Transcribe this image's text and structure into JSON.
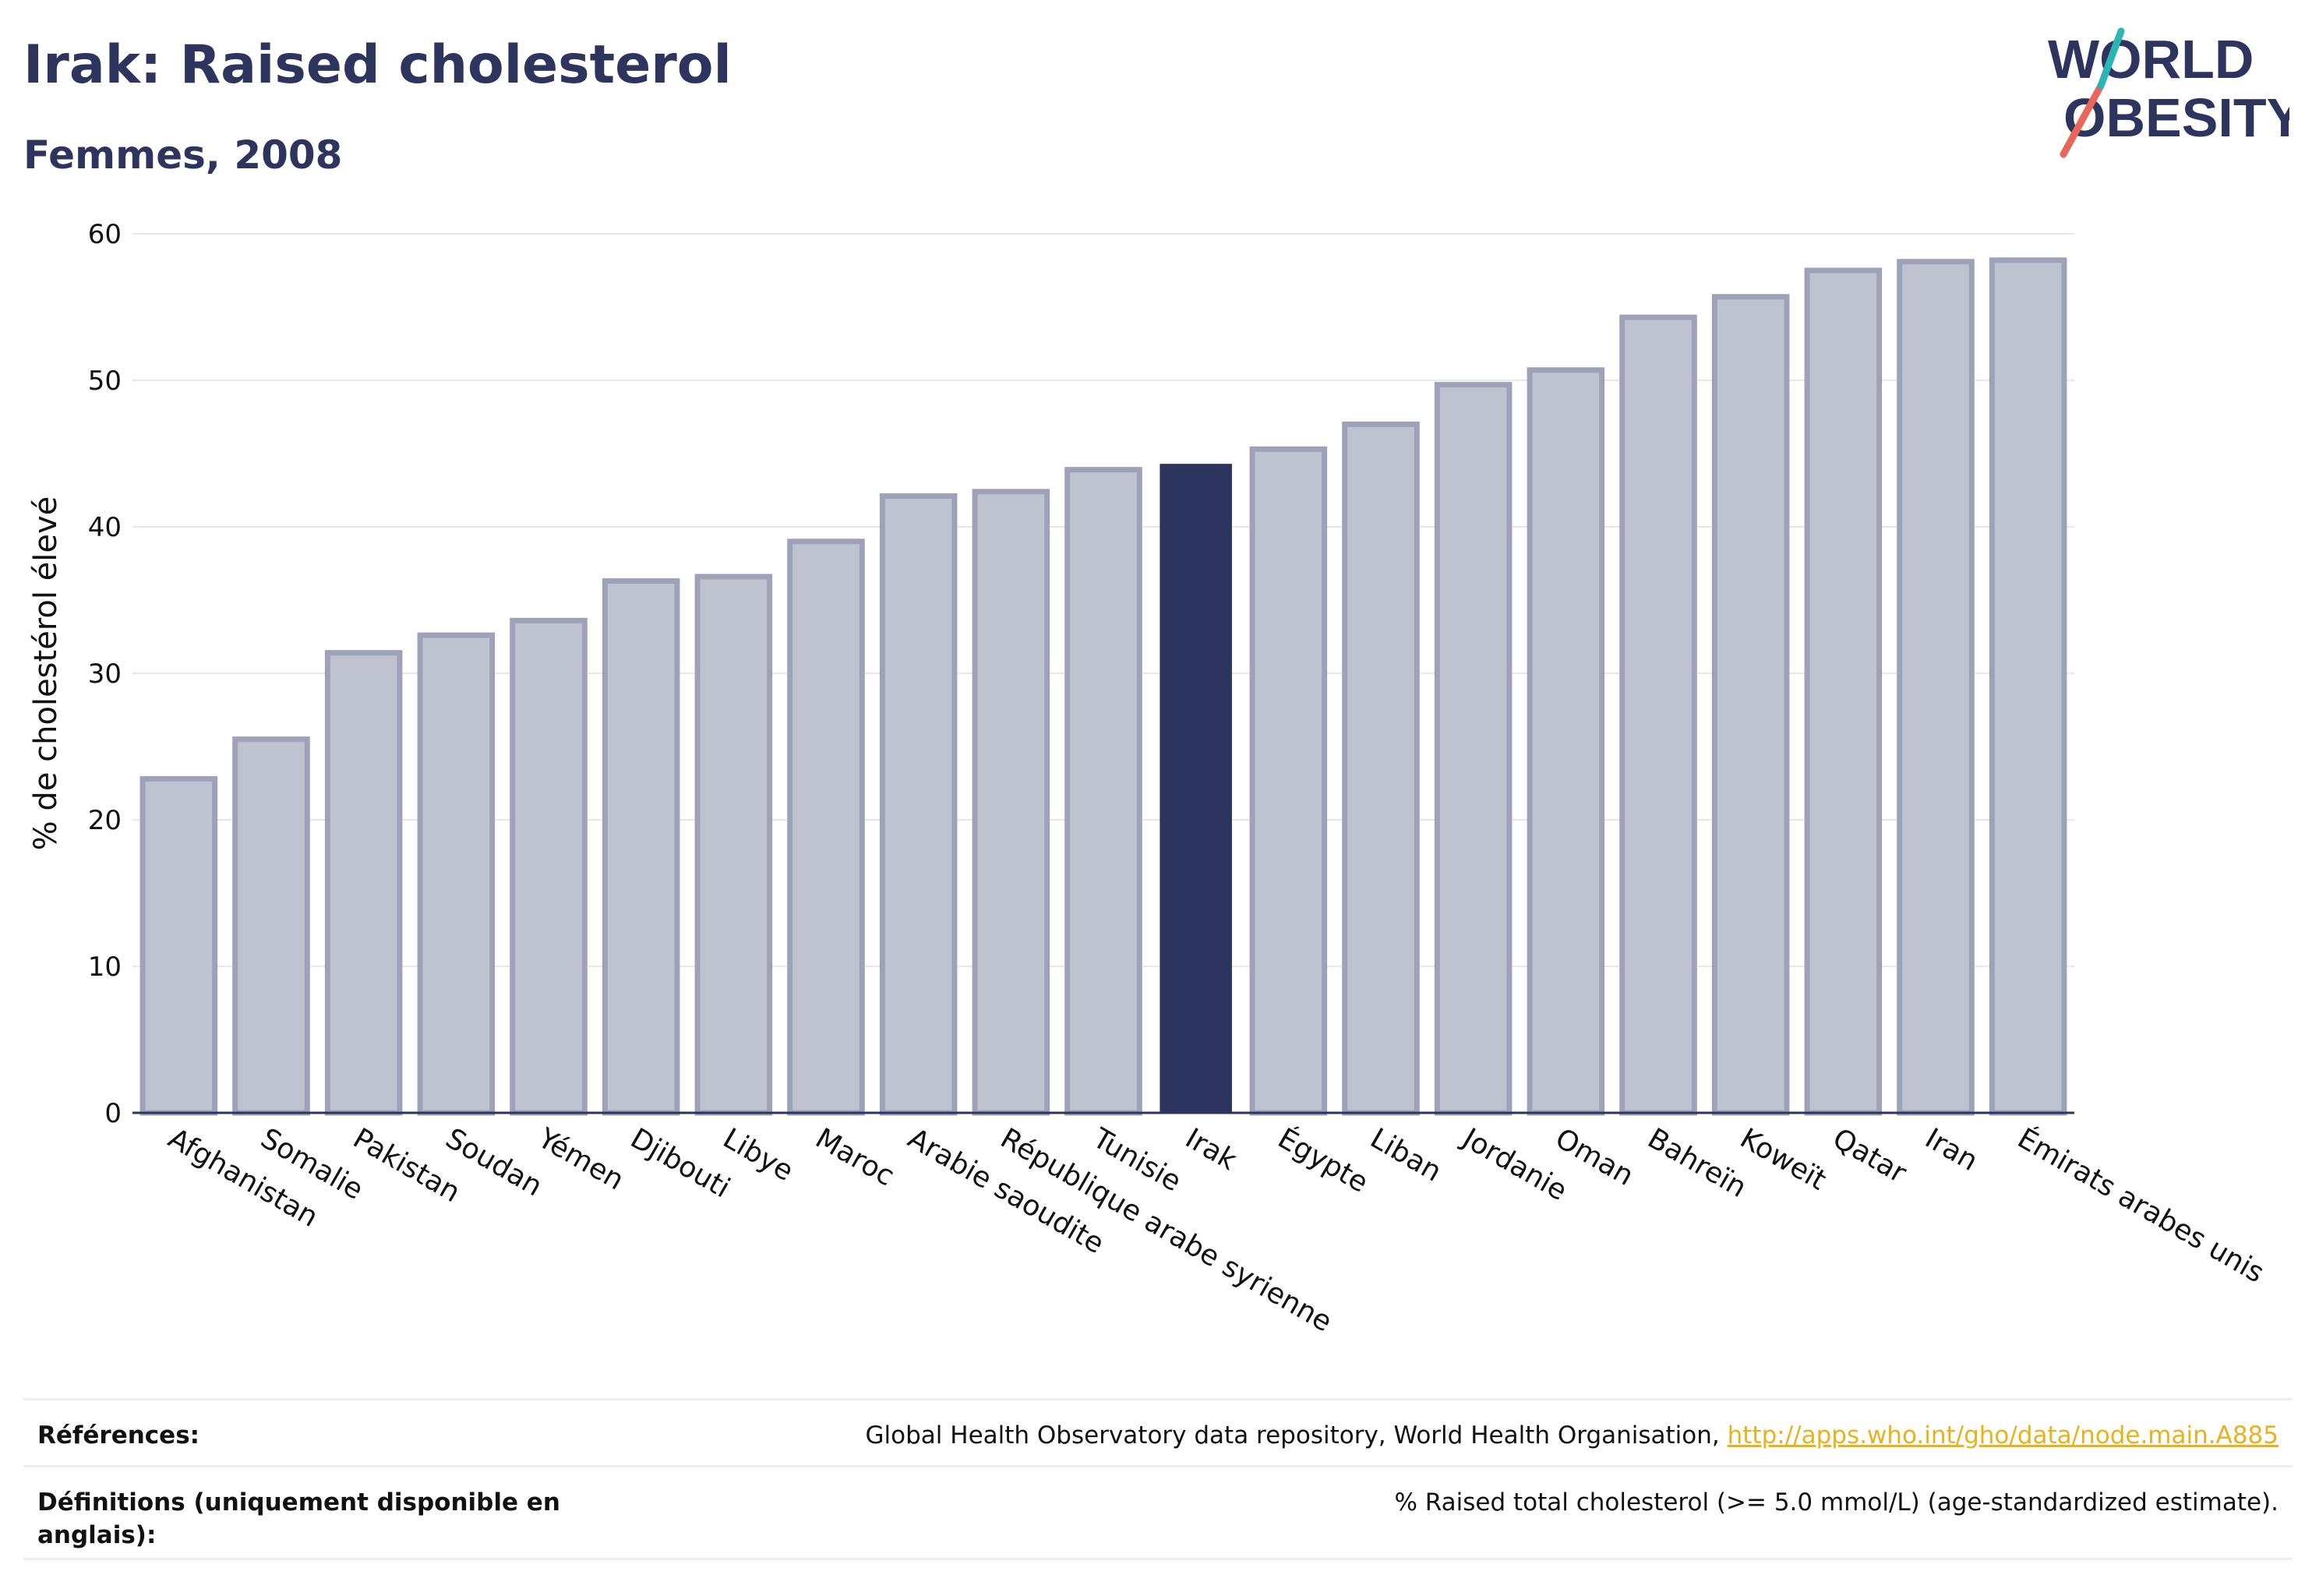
{
  "header": {
    "title": "Irak: Raised cholesterol",
    "subtitle": "Femmes, 2008"
  },
  "logo": {
    "line1": "WORLD",
    "line2": "OBESITY",
    "accent_colors": [
      "#e8665a",
      "#2cb5b5"
    ]
  },
  "colors": {
    "highlight_bar": "#2d355f",
    "other_bar_fill": "#bfc3d0",
    "other_bar_stroke": "#9da2b8",
    "link": "#e8b21e"
  },
  "chart_data": {
    "type": "bar",
    "title": "Irak: Raised cholesterol",
    "subtitle": "Femmes, 2008",
    "ylabel": "% de cholestérol élevé",
    "xlabel": "",
    "ylim": [
      0,
      60
    ],
    "yticks": [
      0,
      10,
      20,
      30,
      40,
      50,
      60
    ],
    "grid": true,
    "highlight": "Irak",
    "categories": [
      "Afghanistan",
      "Somalie",
      "Pakistan",
      "Soudan",
      "Yémen",
      "Djibouti",
      "Libye",
      "Maroc",
      "Arabie saoudite",
      "République arabe syrienne",
      "Tunisie",
      "Irak",
      "Égypte",
      "Liban",
      "Jordanie",
      "Oman",
      "Bahreïn",
      "Koweït",
      "Qatar",
      "Iran",
      "Émirats arabes unis"
    ],
    "values": [
      22.8,
      25.5,
      31.4,
      32.6,
      33.6,
      36.3,
      36.6,
      39.0,
      42.1,
      42.4,
      43.9,
      44.3,
      45.3,
      47.0,
      49.7,
      50.7,
      54.3,
      55.7,
      57.5,
      58.1,
      58.2
    ]
  },
  "footer": {
    "references_label": "Références:",
    "references_text": "Global Health Observatory data repository, World Health Organisation, ",
    "references_link": "http://apps.who.int/gho/data/node.main.A885",
    "definitions_label": "Définitions (uniquement disponible en anglais):",
    "definitions_text": "% Raised total cholesterol (>= 5.0 mmol/L) (age-standardized estimate)."
  }
}
